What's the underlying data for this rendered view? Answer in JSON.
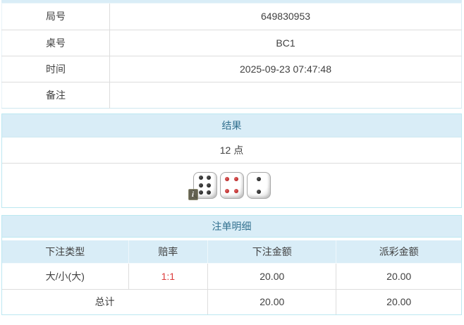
{
  "colors": {
    "panel_heading_bg": "#d9edf7",
    "panel_heading_text": "#31708f",
    "panel_border": "#bce8f1",
    "row_border": "#dddddd",
    "odds_red": "#dc3c3c"
  },
  "game_info": {
    "rows": [
      {
        "label": "局号",
        "value": "649830953"
      },
      {
        "label": "桌号",
        "value": "BC1"
      },
      {
        "label": "时间",
        "value": "2025-09-23 07:47:48"
      },
      {
        "label": "备注",
        "value": ""
      }
    ]
  },
  "result_panel": {
    "title": "结果",
    "points": "12 点",
    "dice": [
      {
        "value": 6,
        "color": "black"
      },
      {
        "value": 4,
        "color": "red"
      },
      {
        "value": 2,
        "color": "black"
      }
    ],
    "info_icon_glyph": "i"
  },
  "bet_panel": {
    "title": "注单明细",
    "columns": [
      "下注类型",
      "赔率",
      "下注金额",
      "派彩金额"
    ],
    "rows": [
      {
        "bet_type": "大/小(大)",
        "odds": "1:1",
        "bet_amount": "20.00",
        "payout": "20.00"
      }
    ],
    "total": {
      "label": "总计",
      "bet_amount": "20.00",
      "payout": "20.00"
    }
  }
}
